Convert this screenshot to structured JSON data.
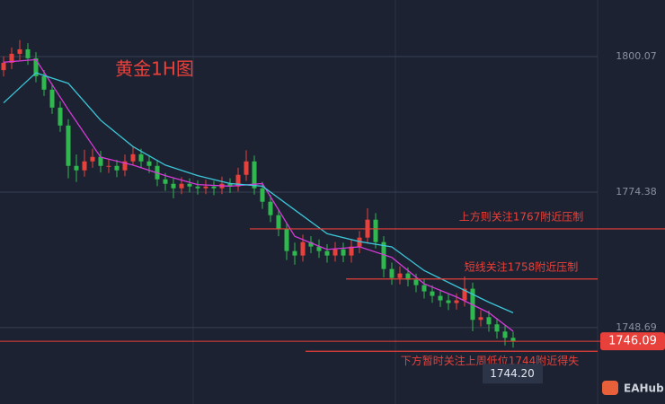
{
  "chart_data": {
    "type": "candlestick",
    "title": "黄金1H图",
    "ylim": [
      1734.2,
      1810.8
    ],
    "yticks": [
      1800.07,
      1774.38,
      1748.69
    ],
    "up_color": "#e8403a",
    "down_color": "#2fb84e",
    "candles": [
      [
        1797.5,
        1800.1,
        1796.3,
        1798.9
      ],
      [
        1798.9,
        1801.8,
        1797.7,
        1800.6
      ],
      [
        1800.6,
        1803.2,
        1799.4,
        1801.45
      ],
      [
        1801.45,
        1802.6,
        1798.5,
        1799.75
      ],
      [
        1799.75,
        1800.9,
        1795.2,
        1796.35
      ],
      [
        1796.35,
        1797.5,
        1792.6,
        1793.8
      ],
      [
        1793.8,
        1795.0,
        1789.2,
        1790.4
      ],
      [
        1790.4,
        1791.6,
        1785.8,
        1787.0
      ],
      [
        1787.0,
        1788.2,
        1777.0,
        1779.35
      ],
      [
        1779.35,
        1781.5,
        1776.3,
        1778.5
      ],
      [
        1778.5,
        1782.4,
        1777.3,
        1780.2
      ],
      [
        1780.2,
        1782.6,
        1779.0,
        1781.05
      ],
      [
        1781.05,
        1782.2,
        1778.1,
        1779.35
      ],
      [
        1779.35,
        1780.6,
        1778.0,
        1779.35
      ],
      [
        1779.35,
        1780.5,
        1777.2,
        1778.5
      ],
      [
        1778.5,
        1781.5,
        1777.4,
        1780.2
      ],
      [
        1780.2,
        1783.0,
        1779.4,
        1781.56
      ],
      [
        1781.56,
        1782.6,
        1779.0,
        1780.2
      ],
      [
        1780.2,
        1781.4,
        1778.0,
        1779.35
      ],
      [
        1779.35,
        1780.5,
        1775.5,
        1776.8
      ],
      [
        1776.8,
        1778.0,
        1774.6,
        1775.95
      ],
      [
        1775.95,
        1777.1,
        1773.2,
        1775.1
      ],
      [
        1775.1,
        1777.2,
        1774.0,
        1775.95
      ],
      [
        1775.95,
        1777.0,
        1774.3,
        1775.44
      ],
      [
        1775.44,
        1776.6,
        1773.9,
        1775.1
      ],
      [
        1775.1,
        1776.7,
        1774.0,
        1775.44
      ],
      [
        1775.44,
        1776.5,
        1773.8,
        1775.1
      ],
      [
        1775.1,
        1777.3,
        1774.0,
        1775.95
      ],
      [
        1775.95,
        1777.0,
        1774.2,
        1775.44
      ],
      [
        1775.44,
        1779.0,
        1774.5,
        1777.65
      ],
      [
        1777.65,
        1782.3,
        1776.5,
        1780.2
      ],
      [
        1780.2,
        1781.3,
        1773.9,
        1775.1
      ],
      [
        1775.1,
        1776.3,
        1771.2,
        1772.55
      ],
      [
        1772.55,
        1773.8,
        1768.7,
        1770.0
      ],
      [
        1770.0,
        1771.2,
        1766.0,
        1767.45
      ],
      [
        1767.45,
        1768.6,
        1761.5,
        1763.2
      ],
      [
        1763.2,
        1764.8,
        1760.6,
        1762.35
      ],
      [
        1762.35,
        1766.3,
        1761.2,
        1764.9
      ],
      [
        1764.9,
        1766.0,
        1762.8,
        1764.05
      ],
      [
        1764.05,
        1765.4,
        1761.9,
        1763.2
      ],
      [
        1763.2,
        1764.5,
        1761.0,
        1762.35
      ],
      [
        1762.35,
        1764.9,
        1761.2,
        1763.54
      ],
      [
        1763.54,
        1764.8,
        1761.1,
        1762.35
      ],
      [
        1762.35,
        1765.3,
        1761.0,
        1764.05
      ],
      [
        1764.05,
        1767.0,
        1762.8,
        1765.75
      ],
      [
        1765.75,
        1771.3,
        1764.6,
        1769.15
      ],
      [
        1769.15,
        1770.4,
        1763.7,
        1764.9
      ],
      [
        1764.9,
        1766.0,
        1758.2,
        1759.8
      ],
      [
        1759.8,
        1761.0,
        1756.8,
        1758.1
      ],
      [
        1758.1,
        1760.3,
        1756.9,
        1758.95
      ],
      [
        1758.95,
        1760.1,
        1756.5,
        1757.76
      ],
      [
        1757.76,
        1758.9,
        1755.4,
        1756.74
      ],
      [
        1756.74,
        1757.9,
        1754.2,
        1755.55
      ],
      [
        1755.55,
        1756.7,
        1753.4,
        1754.7
      ],
      [
        1754.7,
        1755.9,
        1752.6,
        1753.85
      ],
      [
        1753.85,
        1755.0,
        1752.0,
        1753.34
      ],
      [
        1753.34,
        1755.2,
        1752.1,
        1753.85
      ],
      [
        1753.85,
        1758.4,
        1752.7,
        1756.06
      ],
      [
        1756.06,
        1757.2,
        1748.0,
        1750.15
      ],
      [
        1750.15,
        1752.0,
        1748.9,
        1750.66
      ],
      [
        1750.66,
        1751.9,
        1747.9,
        1749.3
      ],
      [
        1749.3,
        1750.5,
        1746.6,
        1747.94
      ],
      [
        1747.94,
        1749.1,
        1745.3,
        1746.75
      ],
      [
        1746.75,
        1747.9,
        1744.9,
        1746.09
      ]
    ],
    "series": [
      {
        "color": "#d63ad8",
        "x": [
          0,
          4,
          8,
          12,
          16,
          20,
          24,
          28,
          32,
          36,
          40,
          44,
          48,
          52,
          56,
          60,
          63
        ],
        "values": [
          1799,
          1799.5,
          1790,
          1781,
          1779.5,
          1777.5,
          1775.8,
          1775.5,
          1776,
          1766,
          1763.5,
          1764,
          1762,
          1757,
          1754.5,
          1751.5,
          1748
        ]
      },
      {
        "color": "#3cc6d8",
        "x": [
          0,
          4,
          8,
          12,
          16,
          20,
          24,
          28,
          32,
          36,
          40,
          44,
          48,
          52,
          56,
          60,
          63
        ],
        "values": [
          1791.3,
          1797,
          1795,
          1788,
          1783,
          1779.5,
          1777.5,
          1776,
          1775.5,
          1771,
          1766.5,
          1765,
          1764,
          1759.5,
          1756.5,
          1753.5,
          1751.5
        ]
      }
    ],
    "levels": [
      {
        "value": 1767.4,
        "text": "上方则关注1767附近压制"
      },
      {
        "value": 1757.9,
        "text": "短线关注1758附近压制"
      },
      {
        "value": 1744.2,
        "text": "下方暂时关注上周低位1744附近得失",
        "tag": "1744.20"
      }
    ],
    "brand": "EAHub"
  }
}
